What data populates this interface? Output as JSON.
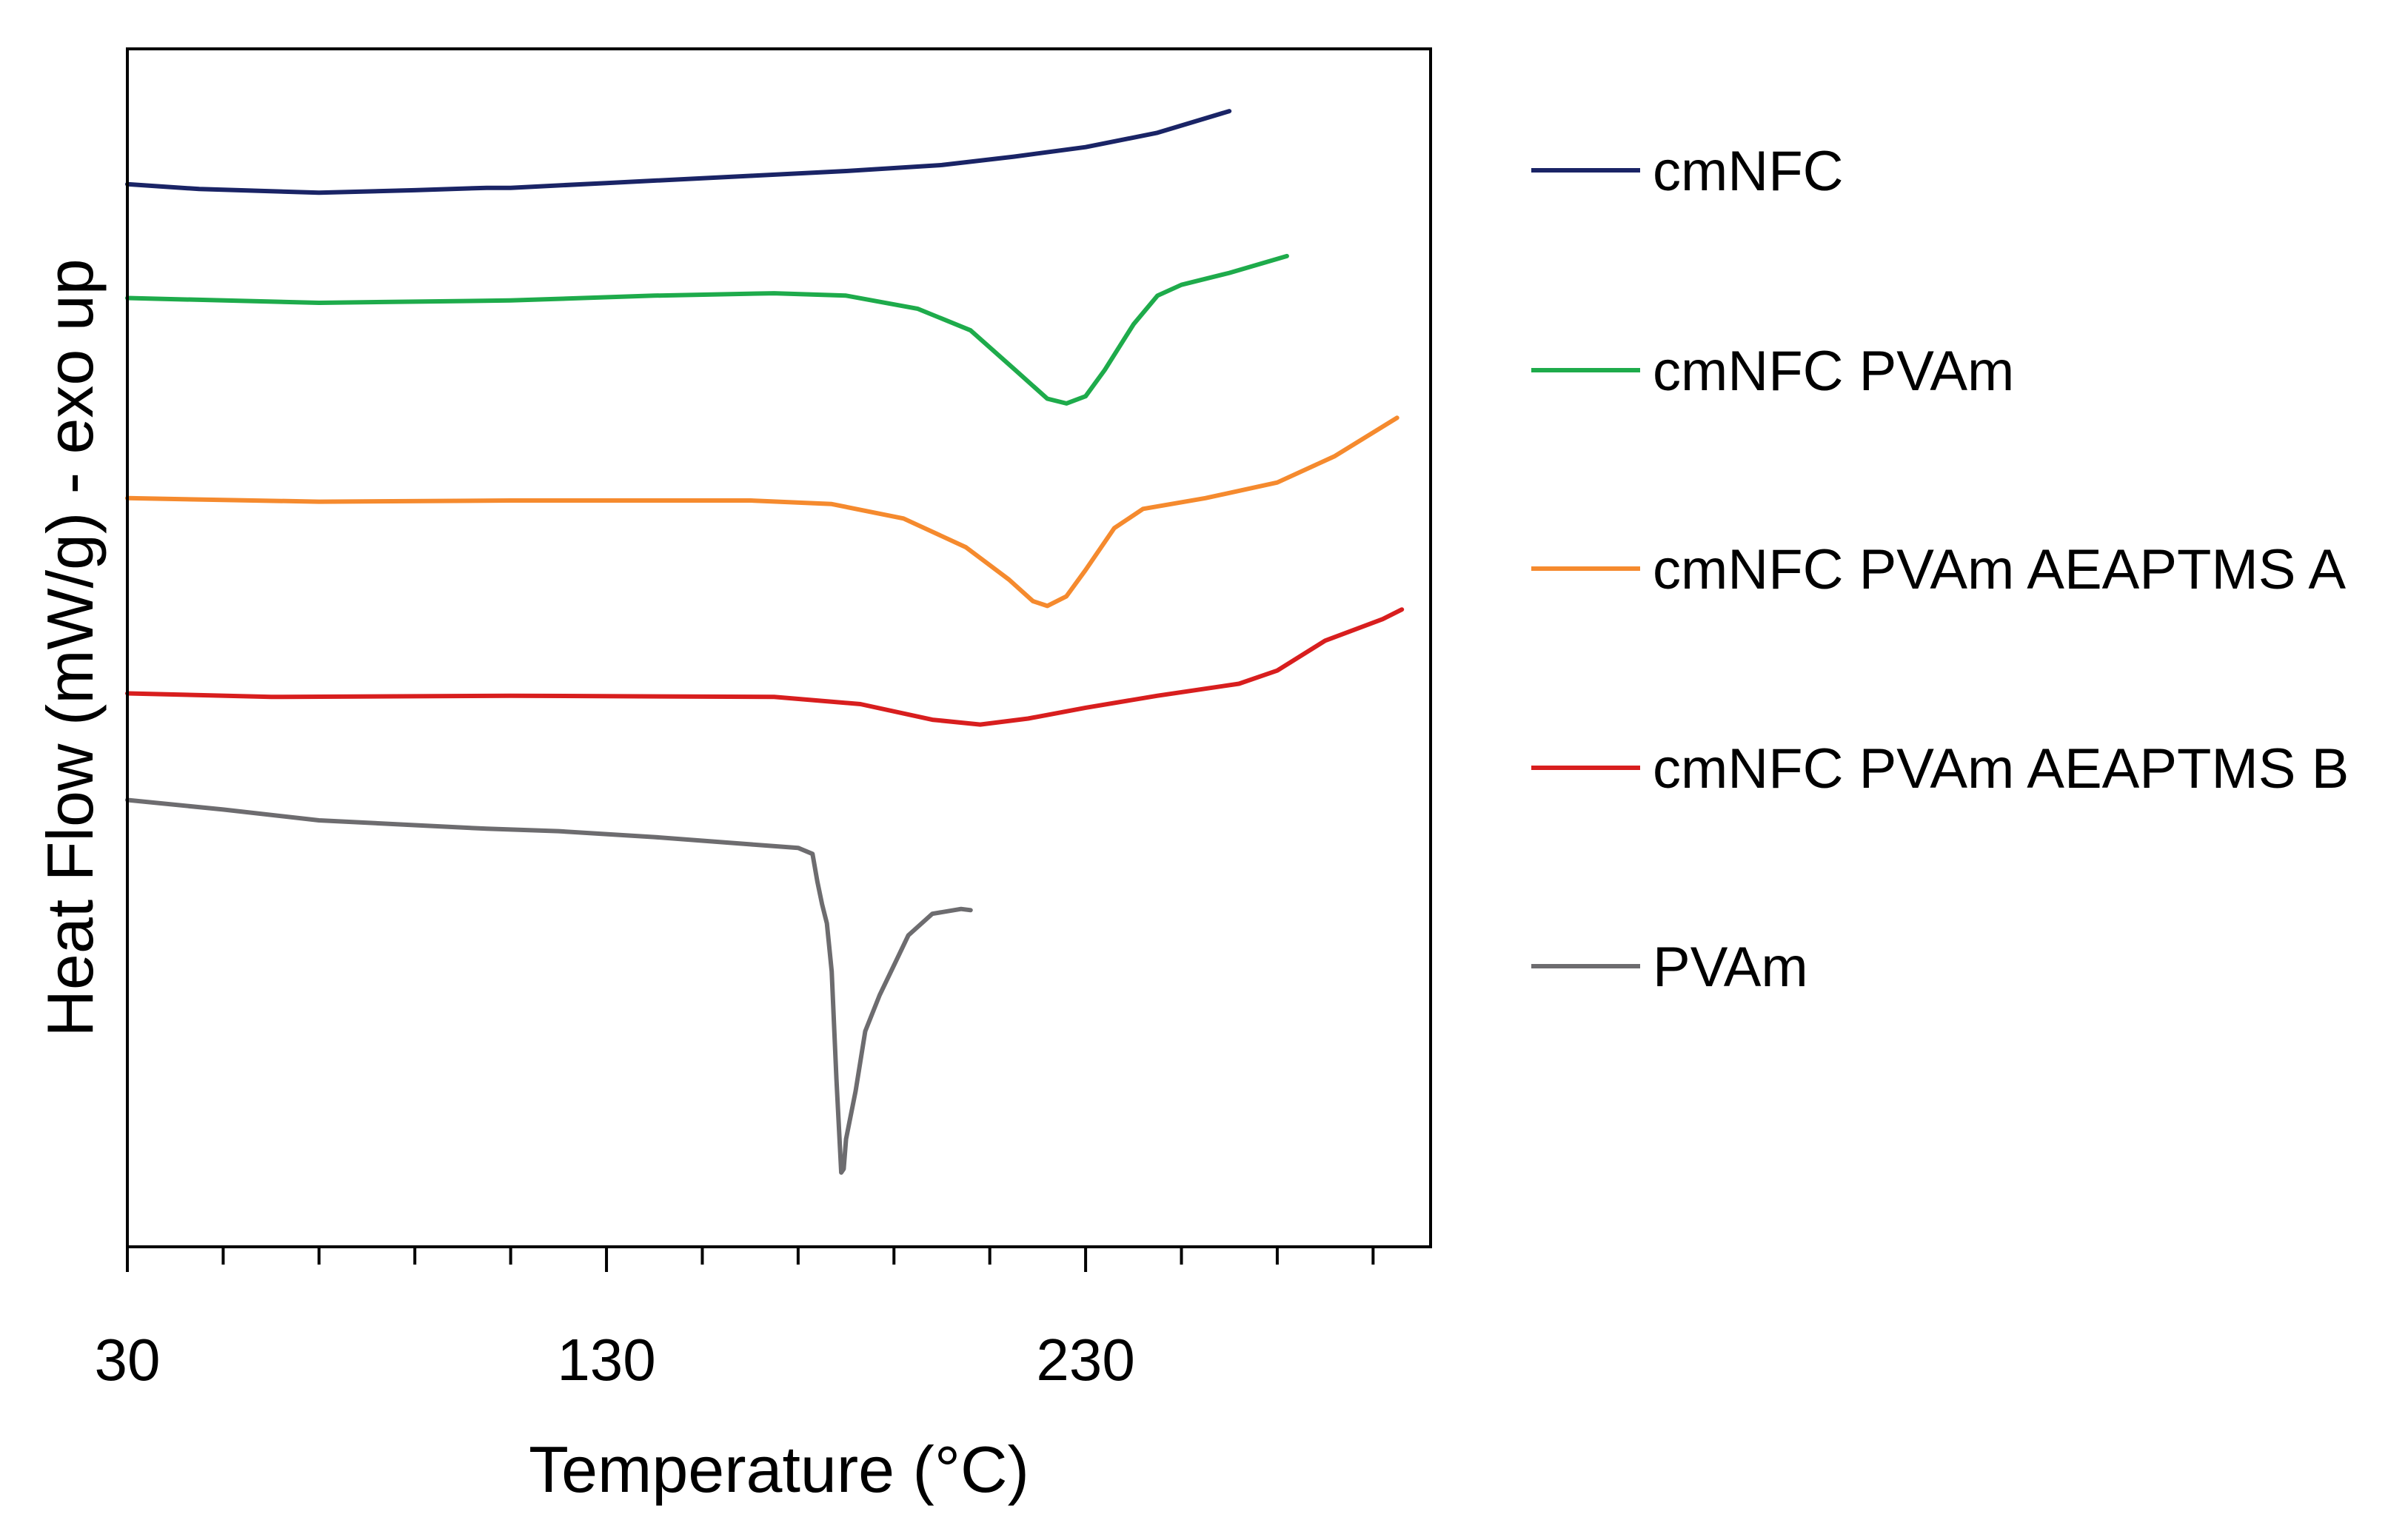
{
  "chart_data": {
    "type": "line",
    "xlabel": "Temperature (°C)",
    "ylabel": "Heat Flow (mW/g) - exo up",
    "xlim": [
      30,
      302
    ],
    "ylim": [
      0,
      100
    ],
    "x_ticks": [
      30,
      130,
      230
    ],
    "x_minor_ticks": [
      50,
      70,
      90,
      110,
      150,
      170,
      190,
      210,
      250,
      270,
      290
    ],
    "y_ticks": [],
    "grid": false,
    "legend_position": "right",
    "series": [
      {
        "name": "cmNFC",
        "color": "#1a2466",
        "points": [
          [
            30,
            88.7
          ],
          [
            45,
            88.3
          ],
          [
            70,
            88.0
          ],
          [
            90,
            88.2
          ],
          [
            105,
            88.4
          ],
          [
            110,
            88.4
          ],
          [
            130,
            88.8
          ],
          [
            160,
            89.4
          ],
          [
            180,
            89.8
          ],
          [
            200,
            90.3
          ],
          [
            215,
            91.0
          ],
          [
            230,
            91.8
          ],
          [
            245,
            93.0
          ],
          [
            260,
            94.8
          ]
        ]
      },
      {
        "name": "cmNFC PVAm",
        "color": "#1eab4b",
        "points": [
          [
            30,
            79.2
          ],
          [
            70,
            78.8
          ],
          [
            110,
            79.0
          ],
          [
            140,
            79.4
          ],
          [
            165,
            79.6
          ],
          [
            180,
            79.4
          ],
          [
            195,
            78.3
          ],
          [
            206,
            76.5
          ],
          [
            215,
            73.3
          ],
          [
            222,
            70.8
          ],
          [
            226,
            70.4
          ],
          [
            230,
            71.0
          ],
          [
            234,
            73.2
          ],
          [
            240,
            77.0
          ],
          [
            245,
            79.4
          ],
          [
            250,
            80.3
          ],
          [
            260,
            81.3
          ],
          [
            272,
            82.7
          ]
        ]
      },
      {
        "name": "cmNFC PVAm AEAPTMS A",
        "color": "#f58a2e",
        "points": [
          [
            30,
            62.5
          ],
          [
            70,
            62.2
          ],
          [
            110,
            62.3
          ],
          [
            160,
            62.3
          ],
          [
            177,
            62.0
          ],
          [
            192,
            60.8
          ],
          [
            205,
            58.4
          ],
          [
            214,
            55.7
          ],
          [
            219,
            53.9
          ],
          [
            222,
            53.5
          ],
          [
            226,
            54.3
          ],
          [
            230,
            56.5
          ],
          [
            236,
            60.0
          ],
          [
            242,
            61.6
          ],
          [
            255,
            62.5
          ],
          [
            270,
            63.8
          ],
          [
            282,
            66.0
          ],
          [
            295,
            69.2
          ]
        ]
      },
      {
        "name": "cmNFC PVAm AEAPTMS B",
        "color": "#d81e1e",
        "points": [
          [
            30,
            46.2
          ],
          [
            60,
            45.9
          ],
          [
            110,
            46.0
          ],
          [
            165,
            45.9
          ],
          [
            183,
            45.3
          ],
          [
            198,
            44.0
          ],
          [
            208,
            43.6
          ],
          [
            218,
            44.1
          ],
          [
            230,
            45.0
          ],
          [
            245,
            46.0
          ],
          [
            262,
            47.0
          ],
          [
            270,
            48.1
          ],
          [
            280,
            50.6
          ],
          [
            292,
            52.4
          ],
          [
            296,
            53.2
          ]
        ]
      },
      {
        "name": "PVAm",
        "color": "#6d6c6f",
        "points": [
          [
            30,
            37.3
          ],
          [
            50,
            36.5
          ],
          [
            70,
            35.6
          ],
          [
            90,
            35.2
          ],
          [
            105,
            34.9
          ],
          [
            120,
            34.7
          ],
          [
            140,
            34.2
          ],
          [
            160,
            33.6
          ],
          [
            170,
            33.3
          ],
          [
            173,
            32.8
          ],
          [
            174,
            30.5
          ],
          [
            175,
            28.6
          ],
          [
            176,
            27.0
          ],
          [
            177,
            23.0
          ],
          [
            178,
            14.0
          ],
          [
            179,
            6.2
          ],
          [
            179.5,
            6.5
          ],
          [
            180,
            9.0
          ],
          [
            182,
            13.0
          ],
          [
            184,
            18.0
          ],
          [
            187,
            21.0
          ],
          [
            190,
            23.5
          ],
          [
            193,
            26.0
          ],
          [
            198,
            27.8
          ],
          [
            204,
            28.2
          ],
          [
            206,
            28.1
          ]
        ]
      }
    ]
  }
}
